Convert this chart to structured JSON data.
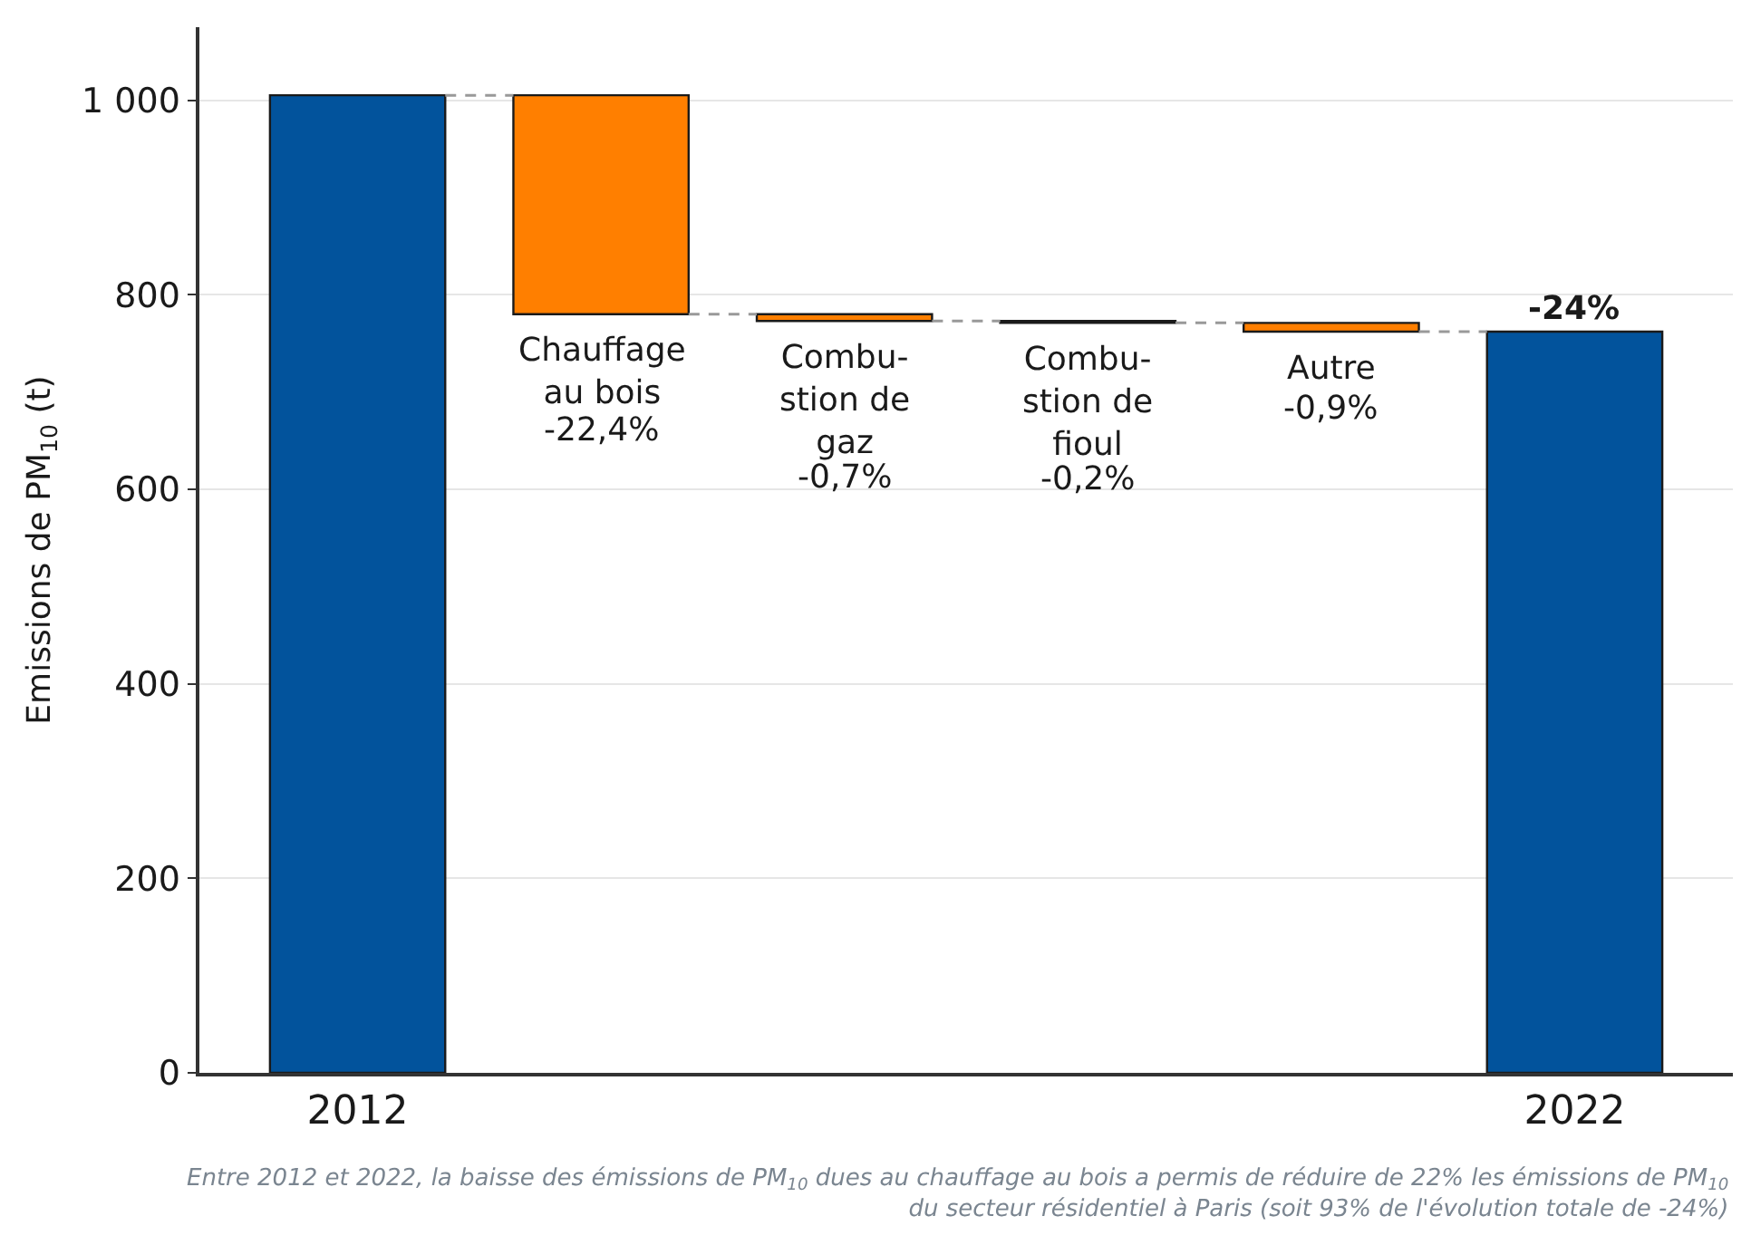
{
  "chart_data": {
    "type": "bar",
    "ylabel": "Emissions de PM$_{10}$ (t)",
    "categories": [
      "2012",
      "Chauffage\nau bois",
      "Combu-\nstion de\ngaz",
      "Combu-\nstion de\nfioul",
      "Autre",
      "2022"
    ],
    "values": [
      1005,
      -225,
      -7,
      -2,
      -9,
      762
    ],
    "base": [
      0,
      1005,
      780,
      773,
      771,
      0
    ],
    "colors": [
      "#02539c",
      "#ff7f00",
      "#ff7f00",
      "#ff7f00",
      "#ff7f00",
      "#02539c"
    ],
    "ylim": [
      0,
      1075
    ],
    "yticks": [
      0,
      200,
      400,
      600,
      800,
      {
        "value": 1000,
        "label": "1 000"
      }
    ],
    "grid": "y",
    "annotations": [
      "-22,4%",
      "-0,7%",
      "-0,2%",
      "-0,9%",
      {
        "text": "-24%",
        "x": "2022",
        "y": 762
      },
      "Entre 2012 et 2022, la baisse des émissions de PM$_{10}$ dues au chauffage au bois a permis de réduire de 22% les émissions de PM$_{10}$\ndu secteur résidentiel à Paris (soit 93% de l'évolution totale de -24%)"
    ]
  }
}
